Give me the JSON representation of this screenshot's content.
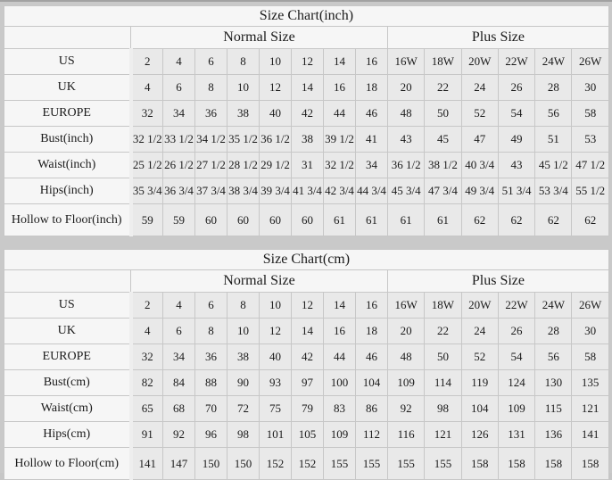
{
  "chart_data": [
    {
      "type": "table",
      "title": "Size Chart(inch)",
      "column_groups": [
        {
          "label": "Normal Size",
          "span": 8
        },
        {
          "label": "Plus Size",
          "span": 6
        }
      ],
      "rows": [
        {
          "label": "US",
          "values": [
            "2",
            "4",
            "6",
            "8",
            "10",
            "12",
            "14",
            "16",
            "16W",
            "18W",
            "20W",
            "22W",
            "24W",
            "26W"
          ]
        },
        {
          "label": "UK",
          "values": [
            "4",
            "6",
            "8",
            "10",
            "12",
            "14",
            "16",
            "18",
            "20",
            "22",
            "24",
            "26",
            "28",
            "30"
          ]
        },
        {
          "label": "EUROPE",
          "values": [
            "32",
            "34",
            "36",
            "38",
            "40",
            "42",
            "44",
            "46",
            "48",
            "50",
            "52",
            "54",
            "56",
            "58"
          ]
        },
        {
          "label": "Bust(inch)",
          "values": [
            "32 1/2",
            "33 1/2",
            "34 1/2",
            "35 1/2",
            "36 1/2",
            "38",
            "39 1/2",
            "41",
            "43",
            "45",
            "47",
            "49",
            "51",
            "53"
          ]
        },
        {
          "label": "Waist(inch)",
          "values": [
            "25 1/2",
            "26 1/2",
            "27 1/2",
            "28 1/2",
            "29 1/2",
            "31",
            "32 1/2",
            "34",
            "36 1/2",
            "38 1/2",
            "40 3/4",
            "43",
            "45 1/2",
            "47 1/2"
          ]
        },
        {
          "label": "Hips(inch)",
          "values": [
            "35 3/4",
            "36 3/4",
            "37 3/4",
            "38 3/4",
            "39 3/4",
            "41 3/4",
            "42 3/4",
            "44 3/4",
            "45 3/4",
            "47 3/4",
            "49 3/4",
            "51 3/4",
            "53 3/4",
            "55 1/2"
          ]
        },
        {
          "label": "Hollow to Floor(inch)",
          "values": [
            "59",
            "59",
            "60",
            "60",
            "60",
            "60",
            "61",
            "61",
            "61",
            "61",
            "62",
            "62",
            "62",
            "62"
          ]
        }
      ]
    },
    {
      "type": "table",
      "title": "Size Chart(cm)",
      "column_groups": [
        {
          "label": "Normal Size",
          "span": 8
        },
        {
          "label": "Plus Size",
          "span": 6
        }
      ],
      "rows": [
        {
          "label": "US",
          "values": [
            "2",
            "4",
            "6",
            "8",
            "10",
            "12",
            "14",
            "16",
            "16W",
            "18W",
            "20W",
            "22W",
            "24W",
            "26W"
          ]
        },
        {
          "label": "UK",
          "values": [
            "4",
            "6",
            "8",
            "10",
            "12",
            "14",
            "16",
            "18",
            "20",
            "22",
            "24",
            "26",
            "28",
            "30"
          ]
        },
        {
          "label": "EUROPE",
          "values": [
            "32",
            "34",
            "36",
            "38",
            "40",
            "42",
            "44",
            "46",
            "48",
            "50",
            "52",
            "54",
            "56",
            "58"
          ]
        },
        {
          "label": "Bust(cm)",
          "values": [
            "82",
            "84",
            "88",
            "90",
            "93",
            "97",
            "100",
            "104",
            "109",
            "114",
            "119",
            "124",
            "130",
            "135"
          ]
        },
        {
          "label": "Waist(cm)",
          "values": [
            "65",
            "68",
            "70",
            "72",
            "75",
            "79",
            "83",
            "86",
            "92",
            "98",
            "104",
            "109",
            "115",
            "121"
          ]
        },
        {
          "label": "Hips(cm)",
          "values": [
            "91",
            "92",
            "96",
            "98",
            "101",
            "105",
            "109",
            "112",
            "116",
            "121",
            "126",
            "131",
            "136",
            "141"
          ]
        },
        {
          "label": "Hollow to Floor(cm)",
          "values": [
            "141",
            "147",
            "150",
            "150",
            "152",
            "152",
            "155",
            "155",
            "155",
            "155",
            "158",
            "158",
            "158",
            "158"
          ]
        }
      ]
    }
  ],
  "colors": {
    "page_background": "#c9c9c9",
    "label_cell_background": "#f6f6f6",
    "data_cell_background": "#e9e9e9",
    "border": "#c7c7c7",
    "text": "#1b1b1b"
  }
}
